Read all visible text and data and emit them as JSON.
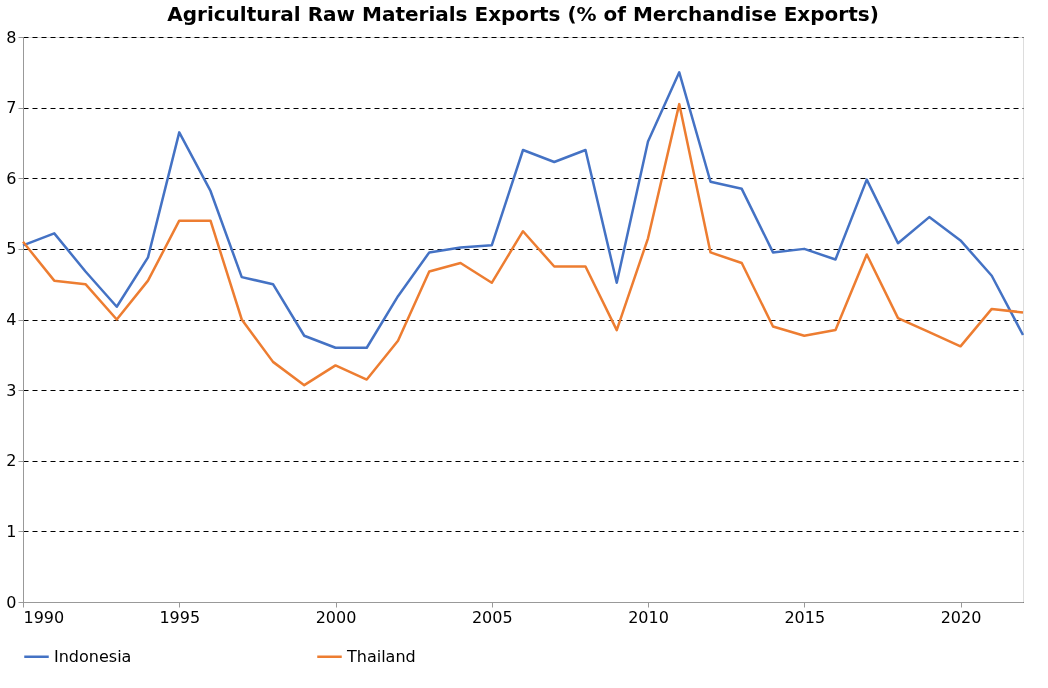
{
  "chart_data": {
    "type": "line",
    "title": "Agricultural Raw Materials Exports (% of Merchandise Exports)",
    "x": [
      1990,
      1991,
      1992,
      1993,
      1994,
      1995,
      1996,
      1997,
      1998,
      1999,
      2000,
      2001,
      2002,
      2003,
      2004,
      2005,
      2006,
      2007,
      2008,
      2009,
      2010,
      2011,
      2012,
      2013,
      2014,
      2015,
      2016,
      2017,
      2018,
      2019,
      2020,
      2021,
      2022
    ],
    "series": [
      {
        "name": "Indonesia",
        "color": "#4472c4",
        "values": [
          5.05,
          5.22,
          4.68,
          4.18,
          4.88,
          6.65,
          5.82,
          4.6,
          4.5,
          3.77,
          3.6,
          3.6,
          4.33,
          4.95,
          5.02,
          5.05,
          6.4,
          6.23,
          6.4,
          4.52,
          6.52,
          7.5,
          5.95,
          5.85,
          4.95,
          5.0,
          4.85,
          5.98,
          5.08,
          5.45,
          5.12,
          4.62,
          3.78
        ]
      },
      {
        "name": "Thailand",
        "color": "#ed7d31",
        "values": [
          5.1,
          4.55,
          4.5,
          4.0,
          4.55,
          5.4,
          5.4,
          4.0,
          3.4,
          3.07,
          3.35,
          3.15,
          3.7,
          4.68,
          4.8,
          4.52,
          5.25,
          4.75,
          4.75,
          3.85,
          5.15,
          7.05,
          4.95,
          4.8,
          3.9,
          3.77,
          3.85,
          4.92,
          4.02,
          3.82,
          3.62,
          4.15,
          4.1
        ]
      }
    ],
    "xlim": [
      1990,
      2022
    ],
    "xticks": [
      1990,
      1995,
      2000,
      2005,
      2010,
      2015,
      2020
    ],
    "ylim": [
      0,
      8
    ],
    "yticks": [
      0,
      1,
      2,
      3,
      4,
      5,
      6,
      7,
      8
    ],
    "grid": "y",
    "legend": "bottom",
    "marker": "none",
    "line_style": "solid"
  }
}
